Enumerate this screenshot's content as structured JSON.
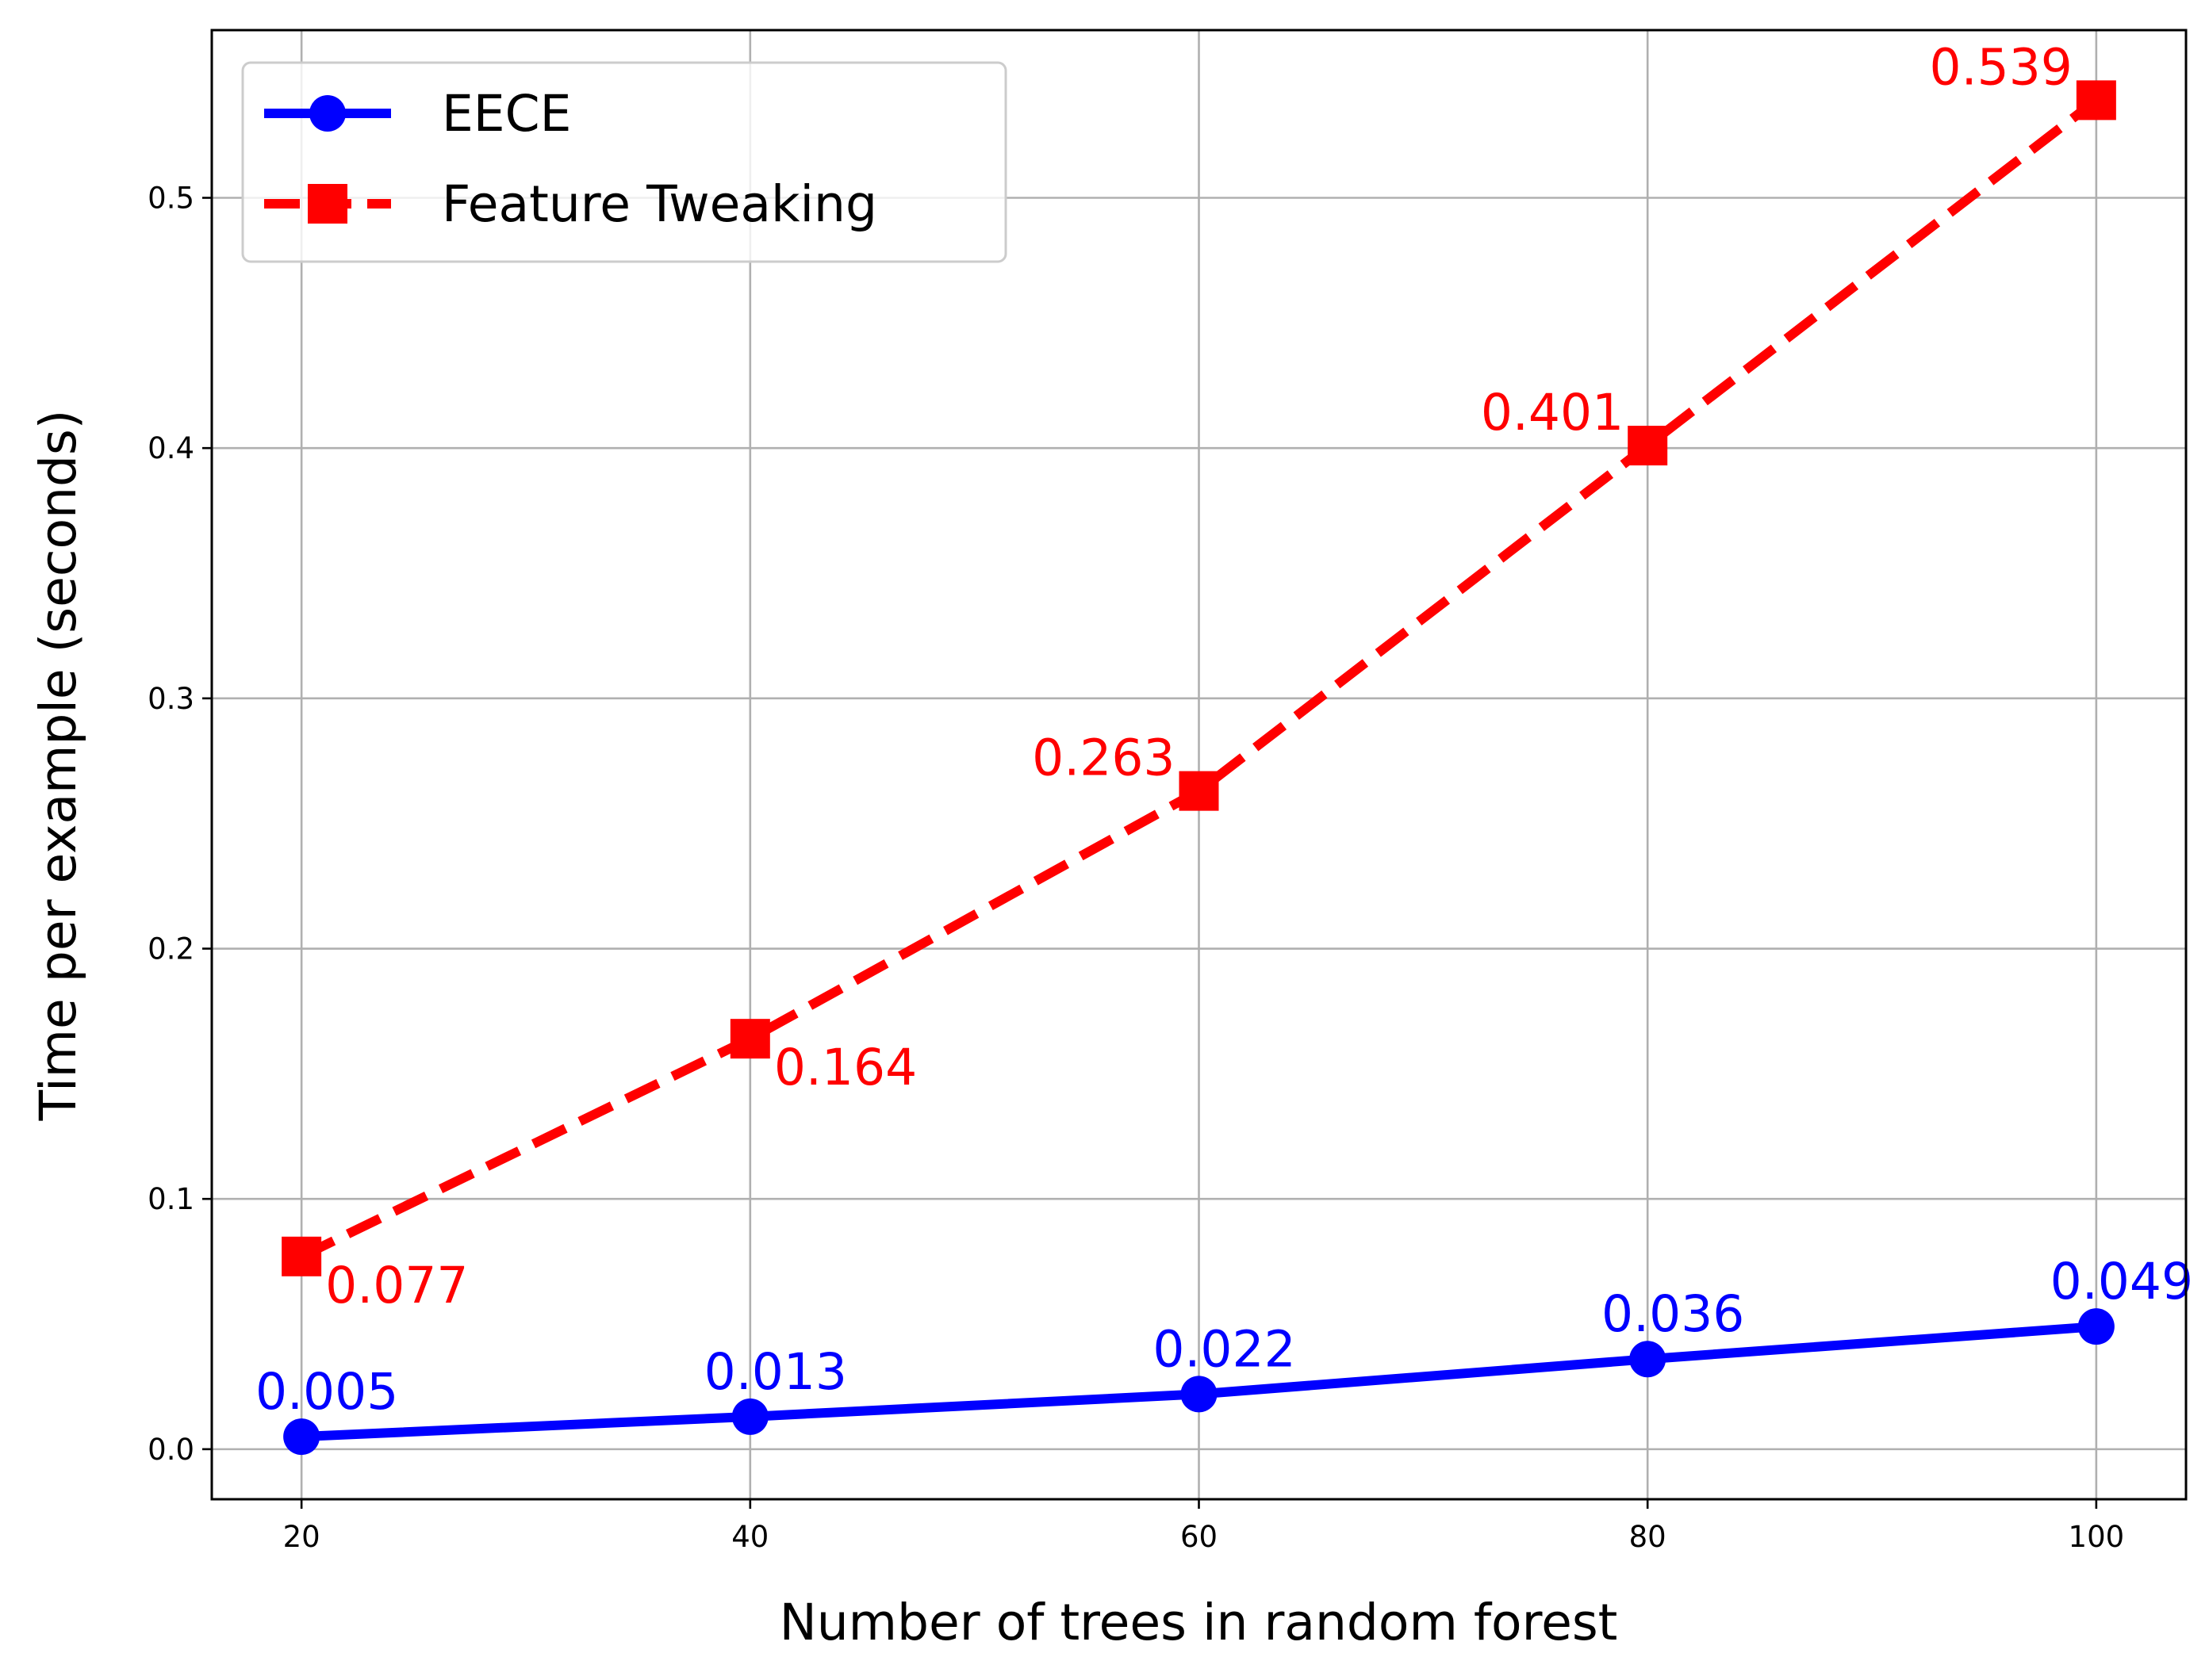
{
  "chart_data": {
    "type": "line",
    "xlabel": "Number of trees in random forest",
    "ylabel": "Time per example (seconds)",
    "x": [
      20,
      40,
      60,
      80,
      100
    ],
    "x_ticks": [
      "20",
      "40",
      "60",
      "80",
      "100"
    ],
    "y_ticks": [
      "0.0",
      "0.1",
      "0.2",
      "0.3",
      "0.4",
      "0.5"
    ],
    "xlim": [
      16,
      104
    ],
    "ylim": [
      -0.02,
      0.567
    ],
    "grid": true,
    "legend_position": "upper-left",
    "series": [
      {
        "name": "EECE",
        "values": [
          0.005,
          0.013,
          0.022,
          0.036,
          0.049
        ],
        "labels": [
          "0.005",
          "0.013",
          "0.022",
          "0.036",
          "0.049"
        ],
        "color": "#0000ff",
        "marker": "circle",
        "line_style": "solid"
      },
      {
        "name": "Feature Tweaking",
        "values": [
          0.077,
          0.164,
          0.263,
          0.401,
          0.539
        ],
        "labels": [
          "0.077",
          "0.164",
          "0.263",
          "0.401",
          "0.539"
        ],
        "color": "#ff0000",
        "marker": "square",
        "line_style": "dashed"
      }
    ]
  }
}
